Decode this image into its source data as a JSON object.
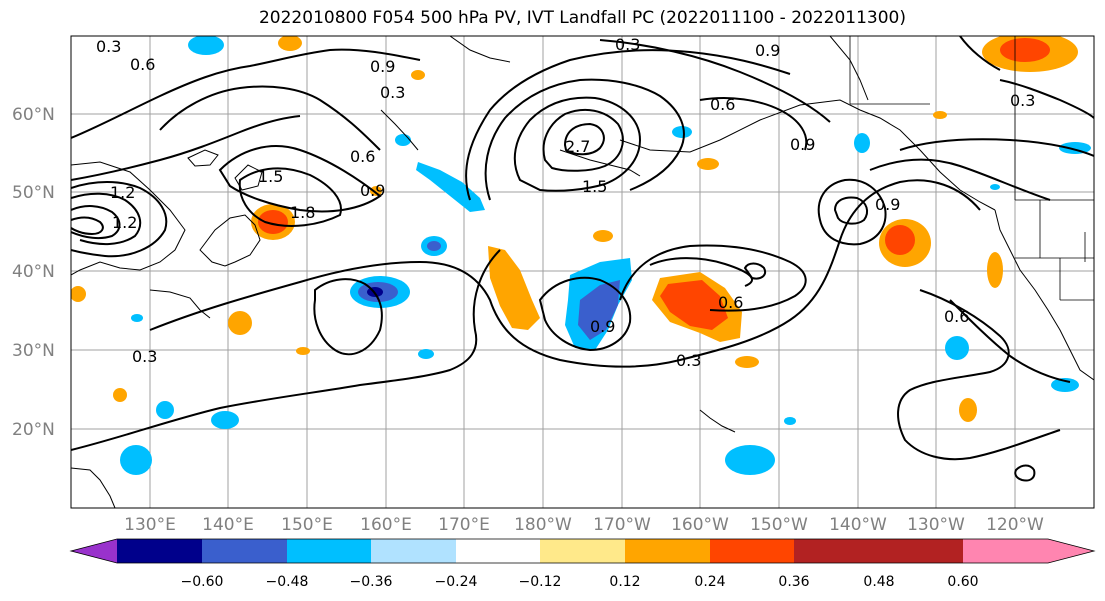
{
  "title": "2022010800 F054 500 hPa PV, IVT Landfall PC (2022011100 - 2022011300)",
  "lat_labels": [
    "60°N",
    "50°N",
    "40°N",
    "30°N",
    "20°N"
  ],
  "lon_labels": [
    "130°E",
    "140°E",
    "150°E",
    "160°E",
    "170°E",
    "180°W",
    "170°W",
    "160°W",
    "150°W",
    "140°W",
    "130°W",
    "120°W"
  ],
  "colorbar": {
    "ticks": [
      "−0.60",
      "−0.48",
      "−0.36",
      "−0.24",
      "−0.12",
      "0.12",
      "0.24",
      "0.36",
      "0.48",
      "0.60"
    ],
    "colors": [
      "#9932cc",
      "#00008b",
      "#3a5fcd",
      "#00bfff",
      "#b0e2ff",
      "#ffffff",
      "#ffe98a",
      "#ffa500",
      "#ff4500",
      "#b22222",
      "#ff85b0"
    ]
  },
  "contour_labels": [
    "0.3",
    "0.6",
    "0.9",
    "0.3",
    "1.5",
    "1.2",
    "0.6",
    "1.2",
    "1.8",
    "0.9",
    "2.7",
    "1.5",
    "0.3",
    "0.9",
    "0.6",
    "0.3",
    "0.9",
    "0.9",
    "0.6",
    "0.9",
    "0.6",
    "0.3",
    "0.3"
  ],
  "colors": {
    "land": "#000000",
    "grid": "#a0a0a0",
    "contour": "#000000"
  }
}
